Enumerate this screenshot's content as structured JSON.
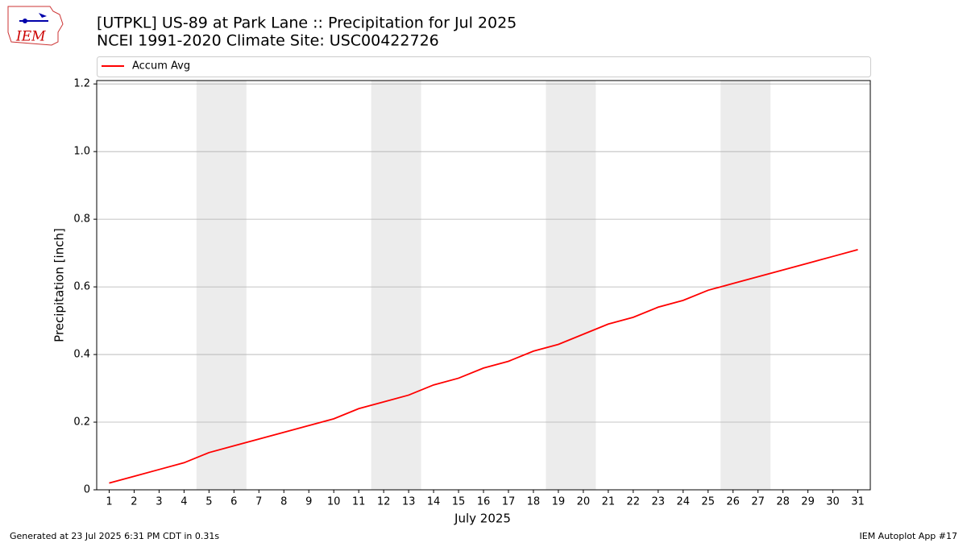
{
  "chart_data": {
    "type": "line",
    "title": "[UTPKL] US-89 at Park Lane  :: Precipitation for Jul 2025",
    "subtitle": "NCEI 1991-2020 Climate Site: USC00422726",
    "xlabel": "July 2025",
    "ylabel": "Precipitation [inch]",
    "x": [
      1,
      2,
      3,
      4,
      5,
      6,
      7,
      8,
      9,
      10,
      11,
      12,
      13,
      14,
      15,
      16,
      17,
      18,
      19,
      20,
      21,
      22,
      23,
      24,
      25,
      26,
      27,
      28,
      29,
      30,
      31
    ],
    "series": [
      {
        "name": "Accum Avg",
        "color": "#ff0000",
        "values": [
          0.02,
          0.04,
          0.06,
          0.08,
          0.11,
          0.13,
          0.15,
          0.17,
          0.19,
          0.21,
          0.24,
          0.26,
          0.28,
          0.31,
          0.33,
          0.36,
          0.38,
          0.41,
          0.43,
          0.46,
          0.49,
          0.51,
          0.54,
          0.56,
          0.59,
          0.61,
          0.63,
          0.65,
          0.67,
          0.69,
          0.71
        ]
      }
    ],
    "xlim": [
      0.5,
      31.5
    ],
    "xticks": [
      1,
      2,
      3,
      4,
      5,
      6,
      7,
      8,
      9,
      10,
      11,
      12,
      13,
      14,
      15,
      16,
      17,
      18,
      19,
      20,
      21,
      22,
      23,
      24,
      25,
      26,
      27,
      28,
      29,
      30,
      31
    ],
    "ylim": [
      0,
      1.21
    ],
    "yticks": [
      0,
      {
        "value": 0.2,
        "label": "0.2"
      },
      {
        "value": 0.4,
        "label": "0.4"
      },
      {
        "value": 0.6,
        "label": "0.6"
      },
      {
        "value": 0.8,
        "label": "0.8"
      },
      {
        "value": 1.0,
        "label": "1.0"
      },
      {
        "value": 1.2,
        "label": "1.2"
      }
    ],
    "shaded_x_ranges": [
      [
        4.5,
        6.5
      ],
      [
        11.5,
        13.5
      ],
      [
        18.5,
        20.5
      ],
      [
        25.5,
        27.5
      ]
    ],
    "grid": true,
    "legend": "top"
  },
  "logo_text": "IEM",
  "footer_left": "Generated at 23 Jul 2025 6:31 PM CDT in 0.31s",
  "footer_right": "IEM Autoplot App #17"
}
